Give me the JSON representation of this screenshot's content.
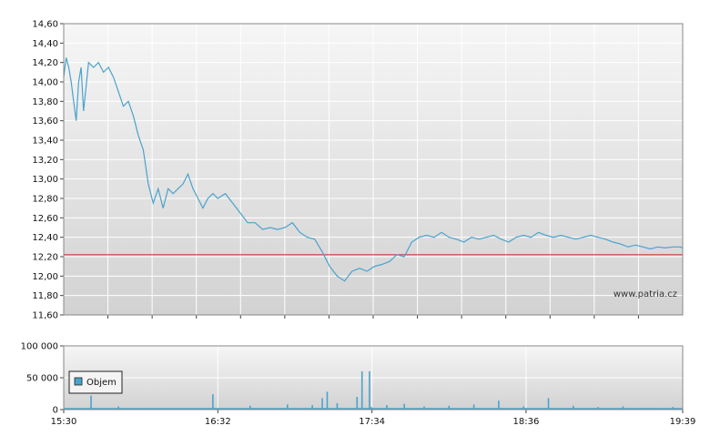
{
  "watermark": "www.patria.cz",
  "chart_data": [
    {
      "type": "line",
      "title": "",
      "ylim": [
        11.6,
        14.6
      ],
      "y_ticks": [
        "14,60",
        "14,40",
        "14,20",
        "14,00",
        "13,80",
        "13,60",
        "13,40",
        "13,20",
        "13,00",
        "12,80",
        "12,60",
        "12,40",
        "12,20",
        "12,00",
        "11,80",
        "11,60"
      ],
      "y_tick_values": [
        14.6,
        14.4,
        14.2,
        14.0,
        13.8,
        13.6,
        13.4,
        13.2,
        13.0,
        12.8,
        12.6,
        12.4,
        12.2,
        12.0,
        11.8,
        11.6
      ],
      "reference_line": 12.22,
      "reference_color": "#cc2222",
      "line_color": "#4aa3cc",
      "grid": true,
      "series": [
        {
          "x": [
            "15:30",
            "15:31",
            "15:32",
            "15:33",
            "15:34",
            "15:35",
            "15:36",
            "15:37",
            "15:38",
            "15:40",
            "15:42",
            "15:44",
            "15:46",
            "15:48",
            "15:50",
            "15:52",
            "15:54",
            "15:56",
            "15:58",
            "16:00",
            "16:02",
            "16:04",
            "16:06",
            "16:08",
            "16:10",
            "16:12",
            "16:14",
            "16:16",
            "16:18",
            "16:20",
            "16:22",
            "16:24",
            "16:26",
            "16:28",
            "16:30",
            "16:32",
            "16:35",
            "16:38",
            "16:41",
            "16:44",
            "16:47",
            "16:50",
            "16:53",
            "16:56",
            "16:59",
            "17:02",
            "17:05",
            "17:08",
            "17:11",
            "17:14",
            "17:17",
            "17:20",
            "17:23",
            "17:26",
            "17:29",
            "17:32",
            "17:35",
            "17:38",
            "17:41",
            "17:44",
            "17:47",
            "17:50",
            "17:53",
            "17:56",
            "17:59",
            "18:02",
            "18:05",
            "18:08",
            "18:11",
            "18:14",
            "18:17",
            "18:20",
            "18:23",
            "18:26",
            "18:29",
            "18:32",
            "18:35",
            "18:38",
            "18:41",
            "18:44",
            "18:47",
            "18:50",
            "18:53",
            "18:56",
            "18:59",
            "19:02",
            "19:05",
            "19:08",
            "19:11",
            "19:14",
            "19:17",
            "19:20",
            "19:23",
            "19:26",
            "19:29",
            "19:32",
            "19:35",
            "19:38",
            "19:39"
          ],
          "values": [
            14.05,
            14.25,
            14.15,
            14.0,
            13.8,
            13.6,
            14.0,
            14.15,
            13.7,
            14.2,
            14.15,
            14.2,
            14.1,
            14.15,
            14.05,
            13.9,
            13.75,
            13.8,
            13.65,
            13.45,
            13.3,
            12.95,
            12.75,
            12.9,
            12.7,
            12.9,
            12.85,
            12.9,
            12.95,
            13.05,
            12.9,
            12.8,
            12.7,
            12.8,
            12.85,
            12.8,
            12.85,
            12.75,
            12.65,
            12.55,
            12.55,
            12.48,
            12.5,
            12.48,
            12.5,
            12.55,
            12.45,
            12.4,
            12.38,
            12.25,
            12.1,
            12.0,
            11.95,
            12.05,
            12.08,
            12.05,
            12.1,
            12.12,
            12.15,
            12.22,
            12.2,
            12.35,
            12.4,
            12.42,
            12.4,
            12.45,
            12.4,
            12.38,
            12.35,
            12.4,
            12.38,
            12.4,
            12.42,
            12.38,
            12.35,
            12.4,
            12.42,
            12.4,
            12.45,
            12.42,
            12.4,
            12.42,
            12.4,
            12.38,
            12.4,
            12.42,
            12.4,
            12.38,
            12.35,
            12.33,
            12.3,
            12.32,
            12.3,
            12.28,
            12.3,
            12.29,
            12.3,
            12.3,
            12.29
          ]
        }
      ]
    },
    {
      "type": "bar",
      "title": "",
      "ylim": [
        0,
        100000
      ],
      "y_ticks": [
        "100 000",
        "50 000",
        "0"
      ],
      "y_tick_values": [
        100000,
        50000,
        0
      ],
      "x_ticks": [
        "15:30",
        "16:32",
        "17:34",
        "18:36",
        "19:39"
      ],
      "legend": {
        "label": "Objem",
        "position": "top-left"
      },
      "bar_color": "#4aa3cc",
      "series": [
        {
          "name": "Objem",
          "x": [
            "15:41",
            "15:52",
            "16:30",
            "16:45",
            "17:00",
            "17:10",
            "17:14",
            "17:16",
            "17:20",
            "17:28",
            "17:30",
            "17:33",
            "17:33b",
            "17:40",
            "17:47",
            "17:55",
            "18:05",
            "18:15",
            "18:25",
            "18:35",
            "18:45",
            "18:55",
            "19:05",
            "19:15",
            "19:25",
            "19:35"
          ],
          "values": [
            22000,
            5000,
            24000,
            6000,
            8000,
            7000,
            18000,
            28000,
            10000,
            20000,
            60000,
            60000,
            4000,
            7000,
            9000,
            5000,
            6000,
            8000,
            14000,
            5000,
            18000,
            6000,
            4000,
            5000,
            3000,
            4000
          ]
        }
      ]
    }
  ]
}
